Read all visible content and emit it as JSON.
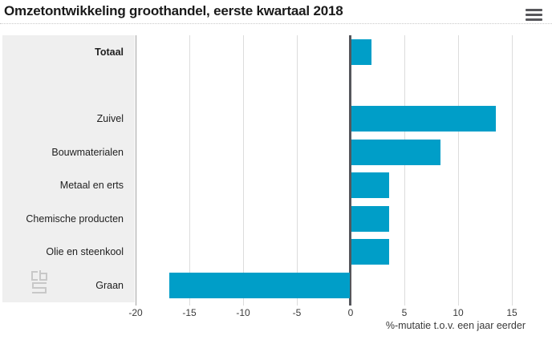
{
  "header": {
    "title": "Omzetontwikkeling groothandel, eerste kwartaal 2018"
  },
  "menu": {
    "icon": "hamburger-icon"
  },
  "logo": {
    "name": "cbs-logo"
  },
  "chart_data": {
    "type": "bar",
    "orientation": "horizontal",
    "title": "Omzetontwikkeling groothandel, eerste kwartaal 2018",
    "categories": [
      "Totaal",
      "Zuivel",
      "Bouwmaterialen",
      "Metaal en erts",
      "Chemische producten",
      "Olie en steenkool",
      "Graan"
    ],
    "values": [
      1.9,
      13.4,
      8.3,
      3.5,
      3.5,
      3.5,
      -16.8
    ],
    "bold_categories": [
      "Totaal"
    ],
    "row_slots": [
      0,
      2,
      3,
      4,
      5,
      6,
      7
    ],
    "xlabel": "%-mutatie t.o.v. een jaar eerder",
    "xticks": [
      -20,
      -15,
      -10,
      -5,
      0,
      5,
      10,
      15
    ],
    "xlim": [
      -20,
      17
    ],
    "grid": true,
    "legend": false,
    "colors": {
      "bar": "#009ec8",
      "zero_line": "#55565b",
      "gridline": "#dcdcdc",
      "boundary_line": "#a3a3a3",
      "panel": "#efefef"
    }
  }
}
